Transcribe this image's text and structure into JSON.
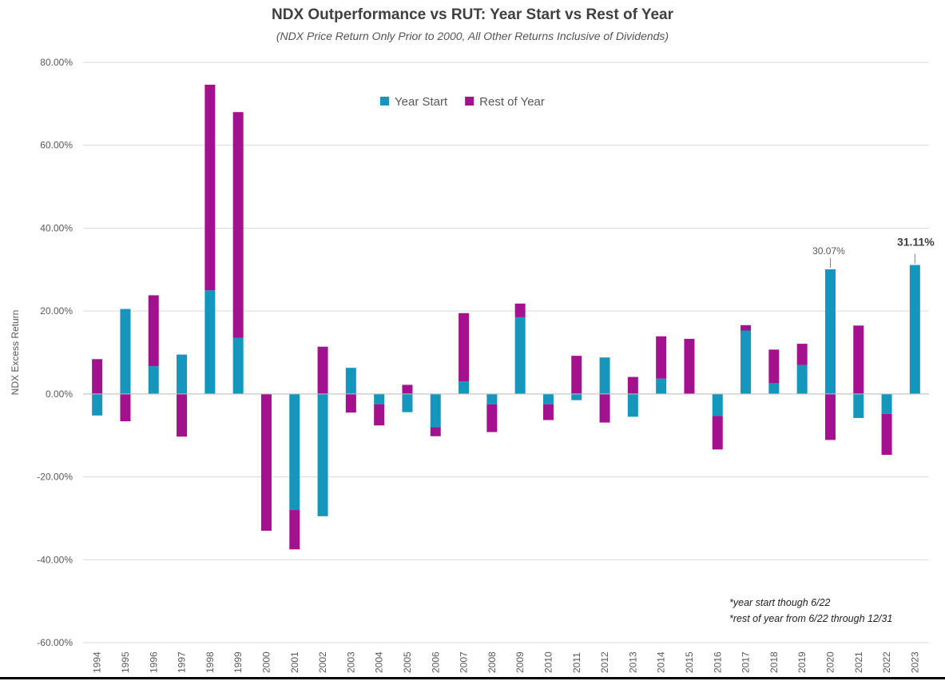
{
  "title": "NDX Outperformance vs RUT: Year Start vs Rest of Year",
  "subtitle": "(NDX Price Return Only Prior to 2000, All Other Returns Inclusive of Dividends)",
  "footnotes": [
    "*year start though 6/22",
    "*rest of year from 6/22 through 12/31"
  ],
  "colors": {
    "year_start": "#1596bd",
    "rest_of_year": "#a4118e",
    "grid": "#d9d9d9",
    "axis_text": "#595959"
  },
  "chart_data": {
    "type": "bar",
    "stacked": true,
    "title": "NDX Outperformance vs RUT: Year Start vs Rest of Year",
    "subtitle": "(NDX Price Return Only Prior to 2000, All Other Returns Inclusive of Dividends)",
    "xlabel": "",
    "ylabel": "NDX Excess Return",
    "ylim": [
      -60,
      80
    ],
    "yticks": [
      80,
      60,
      40,
      20,
      0,
      -20,
      -40,
      -60
    ],
    "ytick_labels": [
      "80.00%",
      "60.00%",
      "40.00%",
      "20.00%",
      "0.00%",
      "-20.00%",
      "-40.00%",
      "-60.00%"
    ],
    "grid": true,
    "legend_position": "top-center",
    "categories": [
      "1994",
      "1995",
      "1996",
      "1997",
      "1998",
      "1999",
      "2000",
      "2001",
      "2002",
      "2003",
      "2004",
      "2005",
      "2006",
      "2007",
      "2008",
      "2009",
      "2010",
      "2011",
      "2012",
      "2013",
      "2014",
      "2015",
      "2016",
      "2017",
      "2018",
      "2019",
      "2020",
      "2021",
      "2022",
      "2023"
    ],
    "series": [
      {
        "name": "Year Start",
        "values": [
          -5.2,
          20.5,
          6.7,
          9.5,
          25.0,
          13.5,
          0.0,
          -28.0,
          -29.5,
          6.3,
          -2.5,
          -4.4,
          -8.0,
          3.0,
          -2.5,
          18.5,
          -2.5,
          -1.5,
          8.8,
          -5.5,
          3.7,
          0.0,
          -5.3,
          15.3,
          2.6,
          7.0,
          30.07,
          -5.8,
          -4.8,
          31.11
        ]
      },
      {
        "name": "Rest of Year",
        "values": [
          8.4,
          -6.6,
          17.1,
          -10.3,
          49.6,
          54.5,
          -33.0,
          -9.5,
          11.4,
          -4.5,
          -5.1,
          2.2,
          -2.2,
          16.5,
          -6.7,
          3.3,
          -3.8,
          9.2,
          -6.9,
          4.1,
          10.2,
          13.3,
          -8.1,
          1.3,
          8.1,
          5.1,
          -11.1,
          16.5,
          -9.9,
          0.0
        ]
      }
    ],
    "annotations": [
      {
        "category": "2020",
        "label": "30.07%",
        "bold": false
      },
      {
        "category": "2023",
        "label": "31.11%",
        "bold": true
      }
    ]
  }
}
